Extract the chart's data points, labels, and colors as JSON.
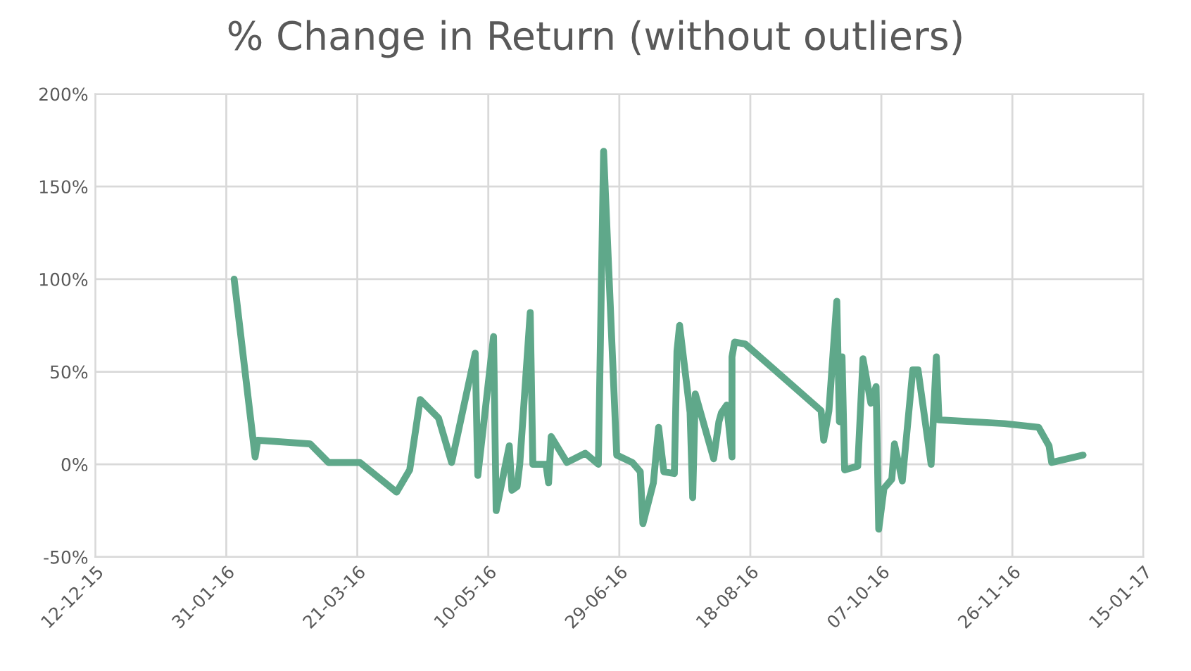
{
  "chart_data": {
    "type": "line",
    "title": "% Change in Return (without outliers)",
    "x": [
      "2016-02-03",
      "2016-02-11",
      "2016-02-12",
      "2016-03-03",
      "2016-03-10",
      "2016-03-22",
      "2016-04-05",
      "2016-04-10",
      "2016-04-14",
      "2016-04-21",
      "2016-04-26",
      "2016-05-05",
      "2016-05-06",
      "2016-05-12",
      "2016-05-13",
      "2016-05-18",
      "2016-05-19",
      "2016-05-21",
      "2016-05-22",
      "2016-05-26",
      "2016-05-27",
      "2016-06-01",
      "2016-06-02",
      "2016-06-03",
      "2016-06-09",
      "2016-06-16",
      "2016-06-21",
      "2016-06-23",
      "2016-06-25",
      "2016-06-28",
      "2016-07-04",
      "2016-07-07",
      "2016-07-08",
      "2016-07-12",
      "2016-07-14",
      "2016-07-16",
      "2016-07-20",
      "2016-07-21",
      "2016-07-22",
      "2016-07-26",
      "2016-07-27",
      "2016-07-28",
      "2016-08-04",
      "2016-08-06",
      "2016-08-07",
      "2016-08-09",
      "2016-08-11",
      "2016-08-11",
      "2016-08-12",
      "2016-08-16",
      "2016-09-14",
      "2016-09-15",
      "2016-09-17",
      "2016-09-20",
      "2016-09-21",
      "2016-09-22",
      "2016-09-23",
      "2016-09-28",
      "2016-09-30",
      "2016-10-03",
      "2016-10-05",
      "2016-10-06",
      "2016-10-08",
      "2016-10-11",
      "2016-10-12",
      "2016-10-15",
      "2016-10-19",
      "2016-10-21",
      "2016-10-26",
      "2016-10-28",
      "2016-10-29",
      "2016-11-23",
      "2016-12-06",
      "2016-12-10",
      "2016-12-11",
      "2016-12-23"
    ],
    "series": [
      {
        "color": "#5fa88a",
        "values": [
          100,
          4,
          13,
          11,
          1,
          1,
          -15,
          -3,
          35,
          25,
          1,
          60,
          -6,
          69,
          -25,
          10,
          -14,
          -12,
          0,
          82,
          0,
          0,
          -10,
          15,
          1,
          6,
          0,
          169,
          104,
          5,
          1,
          -4,
          -32,
          -10,
          20,
          -4,
          -5,
          61,
          75,
          28,
          -18,
          38,
          3,
          23,
          28,
          32,
          4,
          58,
          66,
          65,
          29,
          13,
          29,
          88,
          23,
          58,
          -3,
          -1,
          57,
          33,
          42,
          -35,
          -13,
          -8,
          11,
          -9,
          51,
          51,
          0,
          58,
          24,
          22,
          20,
          10,
          1,
          5
        ]
      }
    ],
    "xlim": [
      "2015-12-12",
      "2017-01-15"
    ],
    "xticks": [
      {
        "value": "2015-12-12",
        "label": "12-12-15"
      },
      {
        "value": "2016-01-31",
        "label": "31-01-16"
      },
      {
        "value": "2016-03-21",
        "label": "21-03-16"
      },
      {
        "value": "2016-05-10",
        "label": "10-05-16"
      },
      {
        "value": "2016-06-29",
        "label": "29-06-16"
      },
      {
        "value": "2016-08-18",
        "label": "18-08-16"
      },
      {
        "value": "2016-10-07",
        "label": "07-10-16"
      },
      {
        "value": "2016-11-26",
        "label": "26-11-16"
      },
      {
        "value": "2017-01-15",
        "label": "15-01-17"
      }
    ],
    "ylim": [
      -50,
      200
    ],
    "yticks": [
      {
        "value": -50,
        "label": "-50%"
      },
      {
        "value": 0,
        "label": "0%"
      },
      {
        "value": 50,
        "label": "50%"
      },
      {
        "value": 100,
        "label": "100%"
      },
      {
        "value": 150,
        "label": "150%"
      },
      {
        "value": 200,
        "label": "200%"
      }
    ],
    "grid": true,
    "line_style": "solid",
    "marker": "none"
  }
}
